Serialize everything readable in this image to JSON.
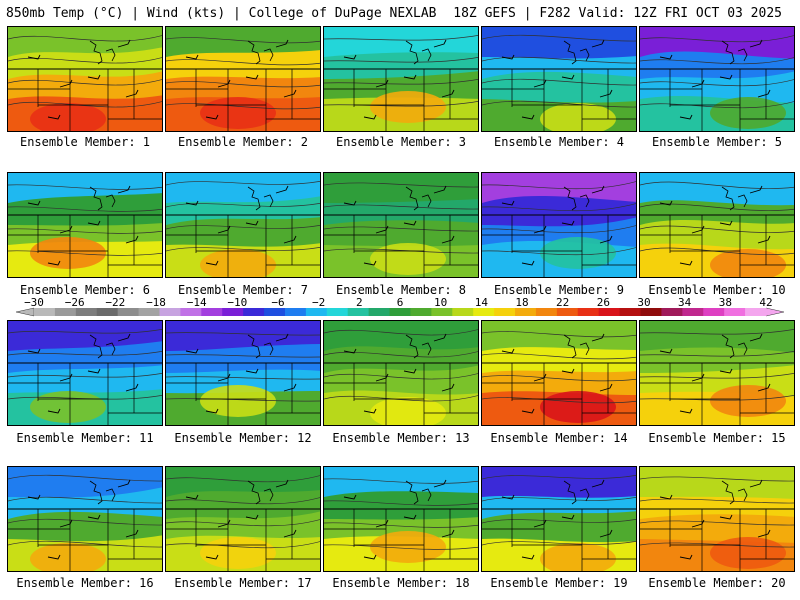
{
  "header": {
    "left": "850mb Temp (°C) | Wind (kts) | College of DuPage NEXLAB",
    "right": "18Z GEFS | F282 Valid: 12Z FRI OCT 03 2025"
  },
  "colorbar": {
    "labels": [
      "−30",
      "−26",
      "−22",
      "−18",
      "−14",
      "−10",
      "−6",
      "−2",
      "2",
      "6",
      "10",
      "14",
      "18",
      "22",
      "26",
      "30",
      "34",
      "38",
      "42"
    ],
    "colors": [
      "#b9b9b9",
      "#9a9a9a",
      "#7d7d7d",
      "#6b6b6b",
      "#8d8d8d",
      "#a3a3a3",
      "#c7a3e0",
      "#c071e6",
      "#a33fdf",
      "#7a1fd7",
      "#3b2ad8",
      "#1f4fe0",
      "#1f7df0",
      "#1fb8f0",
      "#23d6d9",
      "#24c2a0",
      "#23a86a",
      "#2f9e3a",
      "#4faa2f",
      "#7ac22a",
      "#b8d81a",
      "#e6ea10",
      "#f5d10c",
      "#f3ab0c",
      "#f2860e",
      "#ee5a10",
      "#e83015",
      "#d9141a",
      "#b51010",
      "#900c0c",
      "#a01a5a",
      "#c0288e",
      "#de40c2",
      "#f070e0",
      "#f4a6ee"
    ]
  },
  "panels": [
    {
      "member": "Ensemble Member: 1",
      "palette": [
        "#7ac22a",
        "#c9de16",
        "#f3ab0c",
        "#ee5a10",
        "#e83015"
      ]
    },
    {
      "member": "Ensemble Member: 2",
      "palette": [
        "#4faa2f",
        "#f5d10c",
        "#f2860e",
        "#ee5a10",
        "#e83015"
      ]
    },
    {
      "member": "Ensemble Member: 3",
      "palette": [
        "#23d6d9",
        "#24c2a0",
        "#4faa2f",
        "#b8d81a",
        "#f3ab0c"
      ]
    },
    {
      "member": "Ensemble Member: 4",
      "palette": [
        "#1f4fe0",
        "#1fb8f0",
        "#24c2a0",
        "#4faa2f",
        "#c9de16"
      ]
    },
    {
      "member": "Ensemble Member: 5",
      "palette": [
        "#7a1fd7",
        "#1f7df0",
        "#1fb8f0",
        "#24c2a0",
        "#4faa2f"
      ]
    },
    {
      "member": "Ensemble Member: 6",
      "palette": [
        "#1fb8f0",
        "#2f9e3a",
        "#7ac22a",
        "#e6ea10",
        "#f2860e"
      ]
    },
    {
      "member": "Ensemble Member: 7",
      "palette": [
        "#1fb8f0",
        "#24c2a0",
        "#4faa2f",
        "#c9de16",
        "#f3ab0c"
      ]
    },
    {
      "member": "Ensemble Member: 8",
      "palette": [
        "#2f9e3a",
        "#23a86a",
        "#4faa2f",
        "#7ac22a",
        "#c9de16"
      ]
    },
    {
      "member": "Ensemble Member: 9",
      "palette": [
        "#a33fdf",
        "#3b2ad8",
        "#1f7df0",
        "#1fb8f0",
        "#24c2a0"
      ]
    },
    {
      "member": "Ensemble Member: 10",
      "palette": [
        "#1fb8f0",
        "#4faa2f",
        "#b8d81a",
        "#f5d10c",
        "#f2860e"
      ]
    },
    {
      "member": "Ensemble Member: 11",
      "palette": [
        "#3b2ad8",
        "#1f7df0",
        "#1fb8f0",
        "#24c2a0",
        "#7ac22a"
      ]
    },
    {
      "member": "Ensemble Member: 12",
      "palette": [
        "#3b2ad8",
        "#1f7df0",
        "#1fb8f0",
        "#4faa2f",
        "#c9de16"
      ]
    },
    {
      "member": "Ensemble Member: 13",
      "palette": [
        "#2f9e3a",
        "#4faa2f",
        "#7ac22a",
        "#b8d81a",
        "#e6ea10"
      ]
    },
    {
      "member": "Ensemble Member: 14",
      "palette": [
        "#7ac22a",
        "#e6ea10",
        "#f3ab0c",
        "#ee5a10",
        "#d9141a"
      ]
    },
    {
      "member": "Ensemble Member: 15",
      "palette": [
        "#4faa2f",
        "#7ac22a",
        "#c9de16",
        "#f5d10c",
        "#f2860e"
      ]
    },
    {
      "member": "Ensemble Member: 16",
      "palette": [
        "#1f7df0",
        "#1fb8f0",
        "#4faa2f",
        "#c9de16",
        "#f3ab0c"
      ]
    },
    {
      "member": "Ensemble Member: 17",
      "palette": [
        "#2f9e3a",
        "#4faa2f",
        "#7ac22a",
        "#c9de16",
        "#f5d10c"
      ]
    },
    {
      "member": "Ensemble Member: 18",
      "palette": [
        "#1fb8f0",
        "#2f9e3a",
        "#7ac22a",
        "#e6ea10",
        "#f3ab0c"
      ]
    },
    {
      "member": "Ensemble Member: 19",
      "palette": [
        "#3b2ad8",
        "#1fb8f0",
        "#4faa2f",
        "#e6ea10",
        "#f3ab0c"
      ]
    },
    {
      "member": "Ensemble Member: 20",
      "palette": [
        "#b8d81a",
        "#f5d10c",
        "#f3ab0c",
        "#f2860e",
        "#ee5a10"
      ]
    }
  ]
}
